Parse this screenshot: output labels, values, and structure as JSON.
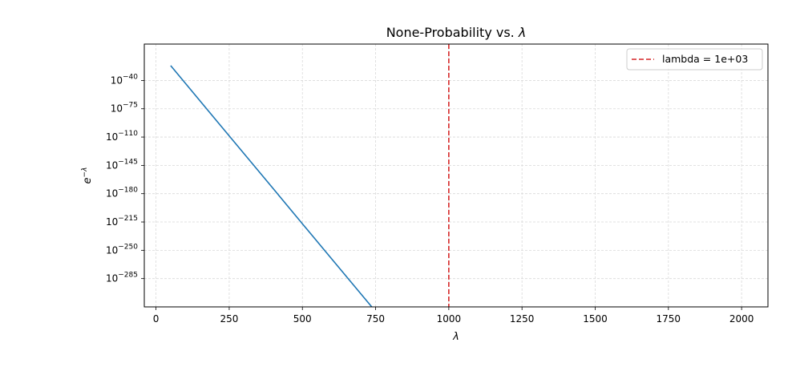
{
  "chart_data": {
    "type": "line",
    "title_prefix": "None-Probability vs. ",
    "title_symbol": "λ",
    "xlabel": "λ",
    "ylabel_base": "e",
    "ylabel_sup": "−λ",
    "xlim": [
      -40,
      2090
    ],
    "ylim_log10": [
      -320,
      5
    ],
    "x_ticks": [
      0,
      250,
      500,
      750,
      1000,
      1250,
      1500,
      1750,
      2000
    ],
    "y_tick_base": "10",
    "y_ticks_log10": [
      -40,
      -75,
      -110,
      -145,
      -180,
      -215,
      -250,
      -285
    ],
    "y_tick_exponents": [
      "−40",
      "−75",
      "−110",
      "−145",
      "−180",
      "−215",
      "−250",
      "−285"
    ],
    "y_scale": "log",
    "grid": true,
    "legend_position": "upper right",
    "series": [
      {
        "color": "#1f77b4",
        "x": [
          50,
          100,
          200,
          300,
          400,
          500,
          600,
          700,
          745
        ],
        "log10_y": [
          -21.7,
          -43.4,
          -86.9,
          -130.3,
          -173.7,
          -217.1,
          -260.6,
          -304.0,
          -323.5
        ]
      }
    ],
    "vline": {
      "x": 1000,
      "color": "#d62728",
      "label": "lambda = 1e+03"
    }
  }
}
